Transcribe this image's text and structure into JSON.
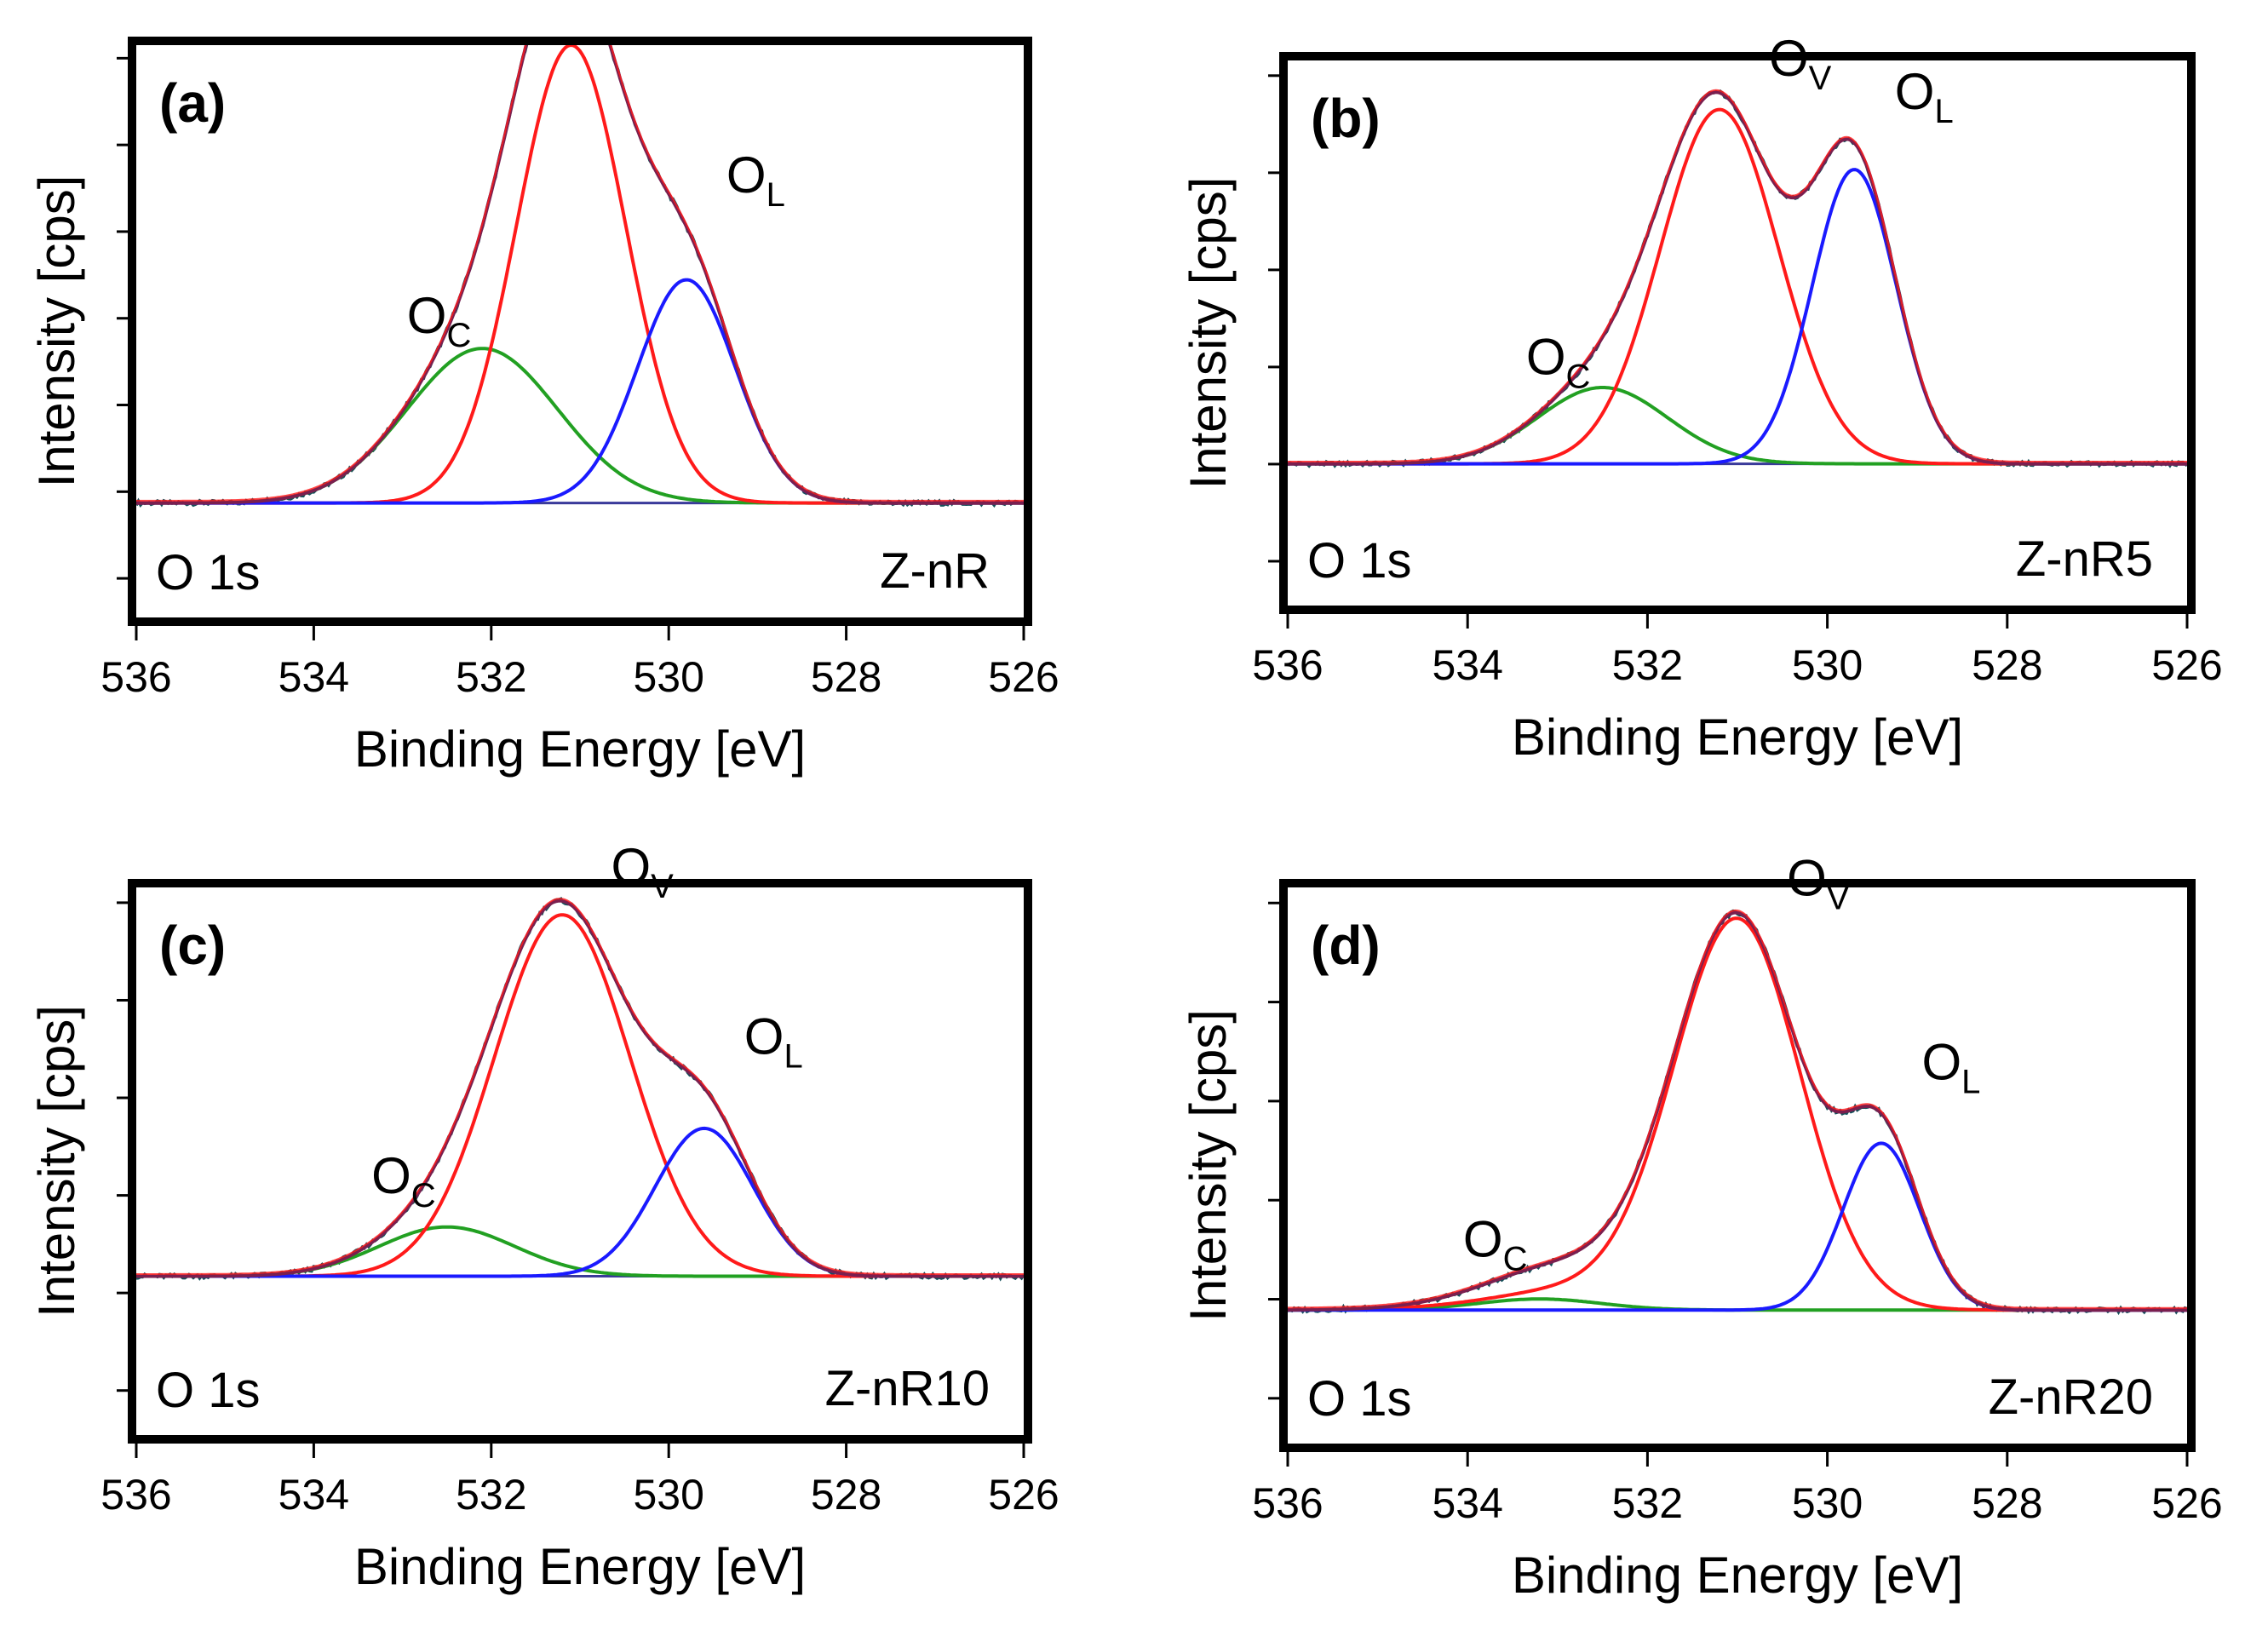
{
  "figure": {
    "common": {
      "xlabel": "Binding Energy [eV]",
      "ylabel": "Intensity [cps]",
      "xlim": [
        536,
        526
      ],
      "xticks": [
        "536",
        "534",
        "532",
        "530",
        "528",
        "526"
      ],
      "core_level": "O 1s",
      "peak_labels": {
        "oc": "O",
        "oc_sub": "C",
        "ov": "O",
        "ov_sub": "V",
        "ol": "O",
        "ol_sub": "L"
      },
      "colors": {
        "oc": "#22a022",
        "ov": "#ff1a1a",
        "ol": "#1a1aff",
        "envelope": "#7a1f4f",
        "raw": "#15505a",
        "baseline": "#3a3a9a"
      }
    }
  },
  "chart_data": [
    {
      "type": "line",
      "panel": "(a)",
      "sample": "Z-nR",
      "title": "",
      "xlabel": "Binding Energy [eV]",
      "ylabel": "Intensity [cps]",
      "xlim": [
        536,
        526
      ],
      "ylim": [
        0,
        1
      ],
      "baseline": 0.2,
      "tail": 0,
      "peaks": {
        "oc": {
          "center": 532.1,
          "height": 0.27,
          "fwhm": 2.0
        },
        "ov": {
          "center": 531.1,
          "height": 0.8,
          "fwhm": 1.45
        },
        "ol": {
          "center": 529.8,
          "height": 0.39,
          "fwhm": 1.3
        }
      }
    },
    {
      "type": "line",
      "panel": "(b)",
      "sample": "Z-nR5",
      "title": "",
      "xlabel": "Binding Energy [eV]",
      "ylabel": "Intensity [cps]",
      "xlim": [
        536,
        526
      ],
      "ylim": [
        0,
        1
      ],
      "baseline": 0.26,
      "tail": 0,
      "peaks": {
        "oc": {
          "center": 532.5,
          "height": 0.14,
          "fwhm": 1.7
        },
        "ov": {
          "center": 531.2,
          "height": 0.65,
          "fwhm": 1.55
        },
        "ol": {
          "center": 529.7,
          "height": 0.54,
          "fwhm": 1.1
        }
      }
    },
    {
      "type": "line",
      "panel": "(c)",
      "sample": "Z-nR10",
      "title": "",
      "xlabel": "Binding Energy [eV]",
      "ylabel": "Intensity [cps]",
      "xlim": [
        536,
        526
      ],
      "ylim": [
        0,
        1
      ],
      "baseline": 0.29,
      "tail": 0,
      "peaks": {
        "oc": {
          "center": 532.5,
          "height": 0.09,
          "fwhm": 1.8
        },
        "ov": {
          "center": 531.2,
          "height": 0.66,
          "fwhm": 1.8
        },
        "ol": {
          "center": 529.6,
          "height": 0.27,
          "fwhm": 1.3
        }
      }
    },
    {
      "type": "line",
      "panel": "(d)",
      "sample": "Z-nR20",
      "title": "",
      "xlabel": "Binding Energy [eV]",
      "ylabel": "Intensity [cps]",
      "xlim": [
        536,
        526
      ],
      "ylim": [
        0,
        1
      ],
      "baseline": 0.24,
      "tail": 0.09,
      "peaks": {
        "oc": {
          "center": 533.2,
          "height": 0.02,
          "fwhm": 1.6
        },
        "ov": {
          "center": 531.0,
          "height": 0.69,
          "fwhm": 1.65
        },
        "ol": {
          "center": 529.4,
          "height": 0.3,
          "fwhm": 1.0
        }
      }
    }
  ]
}
